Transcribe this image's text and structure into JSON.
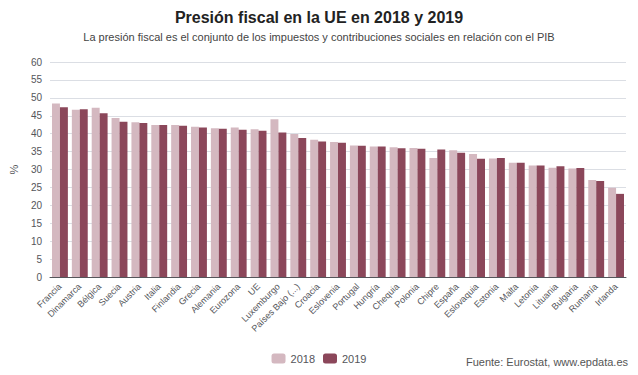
{
  "chart_data": {
    "type": "bar",
    "title": "Presión fiscal en la UE en 2018 y 2019",
    "subtitle": "La presión fiscal es el conjunto de los impuestos y contribuciones sociales en relación con el PIB",
    "ylabel": "%",
    "categories": [
      "Francia",
      "Dinamarca",
      "Bélgica",
      "Suecia",
      "Austria",
      "Italia",
      "Finlandia",
      "Grecia",
      "Alemania",
      "Eurozona",
      "UE",
      "Luxemburgo",
      "Países Bajo (...)",
      "Croacia",
      "Eslovenia",
      "Portugal",
      "Hungría",
      "Chequia",
      "Polonia",
      "Chipre",
      "España",
      "Eslovaquia",
      "Estonia",
      "Malta",
      "Letonia",
      "Lituania",
      "Bulgaria",
      "Rumanía",
      "Irlanda"
    ],
    "series": [
      {
        "name": "2018",
        "color": "#d4b8c0",
        "values": [
          48.4,
          46.7,
          47.2,
          44.4,
          43.2,
          42.4,
          42.4,
          41.9,
          41.5,
          41.7,
          41.2,
          44.0,
          39.9,
          38.3,
          37.7,
          36.7,
          36.4,
          36.2,
          36.0,
          33.2,
          35.4,
          34.3,
          33.1,
          31.9,
          31.1,
          30.5,
          30.3,
          27.1,
          24.9
        ]
      },
      {
        "name": "2019",
        "color": "#8b475a",
        "values": [
          47.4,
          46.8,
          45.7,
          43.3,
          43.0,
          42.4,
          42.2,
          41.7,
          41.4,
          41.1,
          40.8,
          40.3,
          38.8,
          37.8,
          37.5,
          36.6,
          36.4,
          35.9,
          35.8,
          35.6,
          34.7,
          33.0,
          33.2,
          31.9,
          31.1,
          30.9,
          30.4,
          26.8,
          23.2
        ]
      }
    ],
    "ylim": [
      0,
      60
    ],
    "yticks": [
      0,
      5,
      10,
      15,
      20,
      25,
      30,
      35,
      40,
      45,
      50,
      55,
      60
    ],
    "grid": true,
    "legend": "bottom",
    "annotations": [
      "Fuente: Eurostat, www.epdata.es"
    ]
  }
}
